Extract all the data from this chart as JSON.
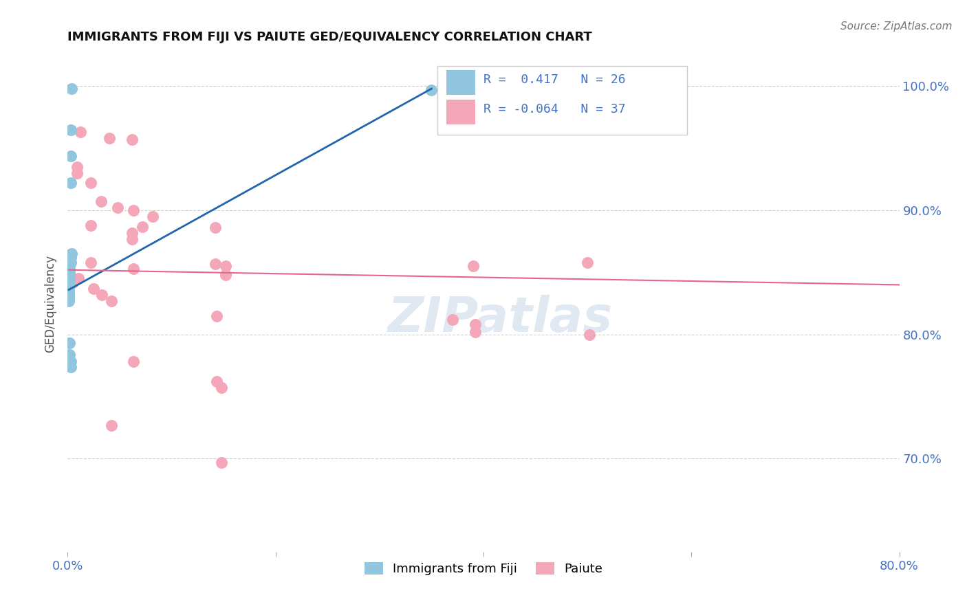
{
  "title": "IMMIGRANTS FROM FIJI VS PAIUTE GED/EQUIVALENCY CORRELATION CHART",
  "source": "Source: ZipAtlas.com",
  "ylabel": "GED/Equivalency",
  "y_tick_labels": [
    "100.0%",
    "90.0%",
    "80.0%",
    "70.0%"
  ],
  "y_tick_values": [
    1.0,
    0.9,
    0.8,
    0.7
  ],
  "xlim": [
    0.0,
    0.8
  ],
  "ylim": [
    0.625,
    1.025
  ],
  "legend_r_fiji": "0.417",
  "legend_n_fiji": "26",
  "legend_r_paiute": "-0.064",
  "legend_n_paiute": "37",
  "fiji_color": "#92c5de",
  "paiute_color": "#f4a7b9",
  "fiji_line_color": "#2166ac",
  "paiute_line_color": "#e8648c",
  "fiji_scatter": [
    [
      0.004,
      0.998
    ],
    [
      0.35,
      0.997
    ],
    [
      0.003,
      0.965
    ],
    [
      0.003,
      0.944
    ],
    [
      0.003,
      0.922
    ],
    [
      0.004,
      0.865
    ],
    [
      0.003,
      0.862
    ],
    [
      0.003,
      0.858
    ],
    [
      0.002,
      0.855
    ],
    [
      0.002,
      0.852
    ],
    [
      0.002,
      0.849
    ],
    [
      0.002,
      0.847
    ],
    [
      0.001,
      0.845
    ],
    [
      0.001,
      0.843
    ],
    [
      0.001,
      0.841
    ],
    [
      0.001,
      0.839
    ],
    [
      0.001,
      0.837
    ],
    [
      0.001,
      0.835
    ],
    [
      0.001,
      0.833
    ],
    [
      0.001,
      0.831
    ],
    [
      0.001,
      0.829
    ],
    [
      0.001,
      0.827
    ],
    [
      0.002,
      0.793
    ],
    [
      0.002,
      0.784
    ],
    [
      0.003,
      0.778
    ],
    [
      0.003,
      0.774
    ]
  ],
  "paiute_scatter": [
    [
      0.012,
      0.963
    ],
    [
      0.04,
      0.958
    ],
    [
      0.062,
      0.957
    ],
    [
      0.009,
      0.935
    ],
    [
      0.009,
      0.93
    ],
    [
      0.022,
      0.922
    ],
    [
      0.032,
      0.907
    ],
    [
      0.048,
      0.902
    ],
    [
      0.063,
      0.9
    ],
    [
      0.082,
      0.895
    ],
    [
      0.022,
      0.888
    ],
    [
      0.072,
      0.887
    ],
    [
      0.142,
      0.886
    ],
    [
      0.062,
      0.882
    ],
    [
      0.062,
      0.877
    ],
    [
      0.022,
      0.858
    ],
    [
      0.142,
      0.857
    ],
    [
      0.152,
      0.855
    ],
    [
      0.063,
      0.853
    ],
    [
      0.5,
      0.858
    ],
    [
      0.39,
      0.855
    ],
    [
      0.152,
      0.848
    ],
    [
      0.01,
      0.845
    ],
    [
      0.005,
      0.842
    ],
    [
      0.025,
      0.837
    ],
    [
      0.033,
      0.832
    ],
    [
      0.042,
      0.827
    ],
    [
      0.143,
      0.815
    ],
    [
      0.37,
      0.812
    ],
    [
      0.392,
      0.808
    ],
    [
      0.392,
      0.802
    ],
    [
      0.502,
      0.8
    ],
    [
      0.063,
      0.778
    ],
    [
      0.143,
      0.762
    ],
    [
      0.148,
      0.757
    ],
    [
      0.042,
      0.727
    ],
    [
      0.148,
      0.697
    ]
  ],
  "fiji_trendline": [
    [
      0.001,
      0.836
    ],
    [
      0.35,
      0.998
    ]
  ],
  "paiute_trendline": [
    [
      0.001,
      0.852
    ],
    [
      0.8,
      0.84
    ]
  ],
  "watermark": "ZIPatlas",
  "background_color": "#ffffff",
  "grid_color": "#d0d0d0",
  "tick_color": "#4472c4",
  "label_color": "#555555",
  "title_color": "#111111"
}
